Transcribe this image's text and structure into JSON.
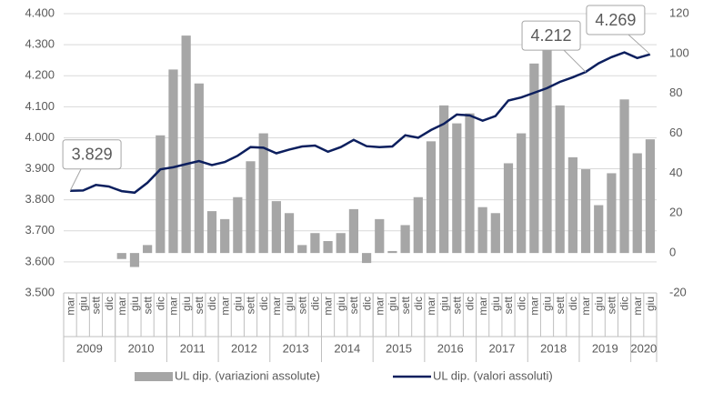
{
  "chart_data": {
    "type": "bar-line",
    "categories": [
      "mar",
      "giu",
      "sett",
      "dic",
      "mar",
      "giu",
      "sett",
      "dic",
      "mar",
      "giu",
      "sett",
      "dic",
      "mar",
      "giu",
      "sett",
      "dic",
      "mar",
      "giu",
      "sett",
      "dic",
      "mar",
      "giu",
      "sett",
      "dic",
      "mar",
      "giu",
      "sett",
      "dic",
      "mar",
      "giu",
      "sett",
      "dic",
      "mar",
      "giu",
      "sett",
      "dic",
      "mar",
      "giu",
      "sett",
      "dic",
      "mar",
      "giu",
      "sett",
      "dic",
      "mar",
      "giu"
    ],
    "years": [
      "2009",
      "2010",
      "2011",
      "2012",
      "2013",
      "2014",
      "2015",
      "2016",
      "2017",
      "2018",
      "2019",
      "2020"
    ],
    "series": [
      {
        "name": "UL dip. (variazioni assolute)",
        "type": "bar",
        "axis": "y2",
        "color": "#a6a6a6",
        "values": [
          null,
          null,
          null,
          null,
          -3,
          -7,
          4,
          59,
          92,
          109,
          85,
          21,
          17,
          28,
          46,
          60,
          26,
          20,
          4,
          10,
          6,
          10,
          22,
          -5,
          17,
          1,
          14,
          28,
          56,
          74,
          65,
          70,
          23,
          20,
          45,
          60,
          95,
          107,
          74,
          48,
          42,
          24,
          40,
          77,
          50,
          57
        ]
      },
      {
        "name": "UL dip. (valori assoluti)",
        "type": "line",
        "axis": "y",
        "color": "#0c1f5e",
        "values": [
          3.829,
          3.83,
          3.848,
          3.843,
          3.828,
          3.823,
          3.855,
          3.898,
          3.905,
          3.915,
          3.925,
          3.912,
          3.922,
          3.942,
          3.97,
          3.968,
          3.95,
          3.962,
          3.972,
          3.975,
          3.955,
          3.97,
          3.993,
          3.973,
          3.97,
          3.972,
          4.008,
          4.0,
          4.025,
          4.045,
          4.075,
          4.072,
          4.055,
          4.07,
          4.12,
          4.13,
          4.145,
          4.16,
          4.18,
          4.195,
          4.212,
          4.24,
          4.26,
          4.275,
          4.257,
          4.269
        ],
        "value_labels": [
          "3.829",
          null,
          null,
          null,
          null,
          null,
          null,
          null,
          null,
          null,
          null,
          null,
          null,
          null,
          null,
          null,
          null,
          null,
          null,
          null,
          null,
          null,
          null,
          null,
          null,
          null,
          null,
          null,
          null,
          null,
          null,
          null,
          null,
          null,
          null,
          null,
          null,
          null,
          null,
          null,
          "4.212",
          null,
          null,
          null,
          null,
          "4.269"
        ]
      }
    ],
    "ylim": [
      3.5,
      4.4
    ],
    "yticks": [
      {
        "value": 3.5,
        "label": "3.500"
      },
      {
        "value": 3.6,
        "label": "3.600"
      },
      {
        "value": 3.7,
        "label": "3.700"
      },
      {
        "value": 3.8,
        "label": "3.800"
      },
      {
        "value": 3.9,
        "label": "3.900"
      },
      {
        "value": 4.0,
        "label": "4.000"
      },
      {
        "value": 4.1,
        "label": "4.100"
      },
      {
        "value": 4.2,
        "label": "4.200"
      },
      {
        "value": 4.3,
        "label": "4.300"
      },
      {
        "value": 4.4,
        "label": "4.400"
      }
    ],
    "y2lim": [
      -20,
      120
    ],
    "y2ticks": [
      -20,
      0,
      20,
      40,
      60,
      80,
      100,
      120
    ],
    "grid": true,
    "legend": "bottom"
  }
}
